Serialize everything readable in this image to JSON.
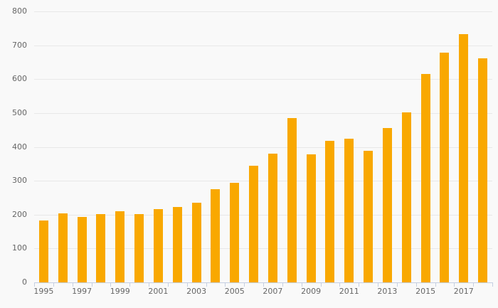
{
  "chart_data": {
    "type": "bar",
    "title": "",
    "xlabel": "",
    "ylabel": "",
    "categories": [
      1995,
      1996,
      1997,
      1998,
      1999,
      2000,
      2001,
      2002,
      2003,
      2004,
      2005,
      2006,
      2007,
      2008,
      2009,
      2010,
      2011,
      2012,
      2013,
      2014,
      2015,
      2016,
      2017,
      2018
    ],
    "values": [
      182,
      204,
      193,
      202,
      210,
      201,
      216,
      223,
      236,
      276,
      295,
      345,
      380,
      486,
      379,
      418,
      424,
      388,
      455,
      501,
      616,
      679,
      733,
      662
    ],
    "ylim": [
      0,
      800
    ],
    "y_ticks": [
      0,
      100,
      200,
      300,
      400,
      500,
      600,
      700,
      800
    ],
    "y_tick_labels": [
      "0",
      "100",
      "200",
      "300",
      "400",
      "500",
      "600",
      "700",
      "800"
    ],
    "x_tick_labels": [
      "1995",
      "1997",
      "1999",
      "2001",
      "2003",
      "2005",
      "2007",
      "2009",
      "2011",
      "2013",
      "2015",
      "2017"
    ],
    "grid": true,
    "legend": false,
    "legend_position": "none",
    "colors": {
      "bar": "#F9A800",
      "background": "#f9f9f9",
      "gridline": "#e8e8e8",
      "axis_line": "#c5cfe2",
      "tick_label": "#666666"
    }
  }
}
